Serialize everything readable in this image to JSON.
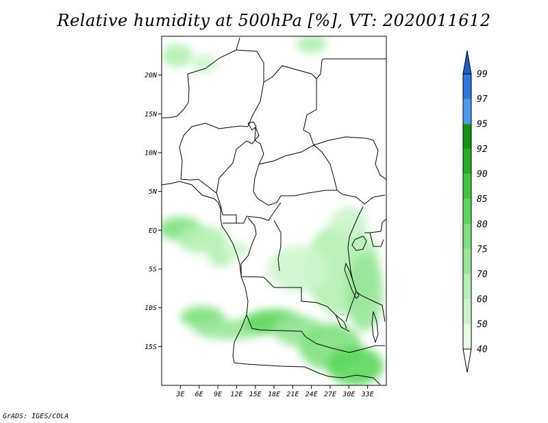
{
  "title": "Relative humidity at 500hPa [%], VT: 2020011612",
  "credit": "GrADS: IGES/COLA",
  "map": {
    "lon_range": [
      0,
      36
    ],
    "lat_range": [
      -20,
      25
    ],
    "lat_ticks": [
      {
        "value": 20,
        "label": "20N"
      },
      {
        "value": 15,
        "label": "15N"
      },
      {
        "value": 10,
        "label": "10N"
      },
      {
        "value": 5,
        "label": "5N"
      },
      {
        "value": 0,
        "label": "EQ"
      },
      {
        "value": -5,
        "label": "5S"
      },
      {
        "value": -10,
        "label": "10S"
      },
      {
        "value": -15,
        "label": "15S"
      }
    ],
    "lon_ticks": [
      {
        "value": 3,
        "label": "3E"
      },
      {
        "value": 6,
        "label": "6E"
      },
      {
        "value": 9,
        "label": "9E"
      },
      {
        "value": 12,
        "label": "12E"
      },
      {
        "value": 15,
        "label": "15E"
      },
      {
        "value": 18,
        "label": "18E"
      },
      {
        "value": 21,
        "label": "21E"
      },
      {
        "value": 24,
        "label": "24E"
      },
      {
        "value": 27,
        "label": "27E"
      },
      {
        "value": 30,
        "label": "30E"
      },
      {
        "value": 33,
        "label": "33E"
      }
    ],
    "humidity_patches": [
      {
        "lon": 2.5,
        "lat": 22.5,
        "rx": 2.5,
        "ry": 1.5,
        "level": 60
      },
      {
        "lon": 7,
        "lat": 21.5,
        "rx": 2,
        "ry": 1.2,
        "level": 50
      },
      {
        "lon": 24,
        "lat": 24,
        "rx": 2.5,
        "ry": 1.2,
        "level": 60
      },
      {
        "lon": 3,
        "lat": 0.2,
        "rx": 3.5,
        "ry": 1.5,
        "level": 75
      },
      {
        "lon": 6.5,
        "lat": -1.2,
        "rx": 4,
        "ry": 1.8,
        "level": 60
      },
      {
        "lon": 9.5,
        "lat": -3.5,
        "rx": 2,
        "ry": 1.2,
        "level": 60
      },
      {
        "lon": 12,
        "lat": -2.5,
        "rx": 2,
        "ry": 1,
        "level": 50
      },
      {
        "lon": 6.5,
        "lat": -11.2,
        "rx": 3.5,
        "ry": 1.4,
        "level": 75
      },
      {
        "lon": 11,
        "lat": -12.8,
        "rx": 6,
        "ry": 1.3,
        "level": 70
      },
      {
        "lon": 18,
        "lat": -11.8,
        "rx": 5,
        "ry": 1.6,
        "level": 80
      },
      {
        "lon": 22,
        "lat": -13,
        "rx": 4,
        "ry": 2,
        "level": 70
      },
      {
        "lon": 27,
        "lat": -15,
        "rx": 5,
        "ry": 3,
        "level": 75
      },
      {
        "lon": 31,
        "lat": -17.5,
        "rx": 4.5,
        "ry": 2.5,
        "level": 80
      },
      {
        "lon": 29,
        "lat": -5,
        "rx": 6,
        "ry": 6,
        "level": 60
      },
      {
        "lon": 32.5,
        "lat": -8,
        "rx": 3,
        "ry": 5,
        "level": 70
      },
      {
        "lon": 30,
        "lat": 1,
        "rx": 3,
        "ry": 2,
        "level": 50
      },
      {
        "lon": 22,
        "lat": -5,
        "rx": 5,
        "ry": 3,
        "level": 50
      }
    ]
  },
  "colorbar": {
    "levels": [
      {
        "label": "40",
        "color": "#e6ffe6"
      },
      {
        "label": "50",
        "color": "#ccf5cc"
      },
      {
        "label": "60",
        "color": "#b3f0b3"
      },
      {
        "label": "70",
        "color": "#99e699"
      },
      {
        "label": "75",
        "color": "#80e080"
      },
      {
        "label": "80",
        "color": "#5cd65c"
      },
      {
        "label": "85",
        "color": "#3dc63d"
      },
      {
        "label": "90",
        "color": "#22b022"
      },
      {
        "label": "92",
        "color": "#129412"
      },
      {
        "label": "95",
        "color": "#4a9be8"
      },
      {
        "label": "97",
        "color": "#2a7ae0"
      },
      {
        "label": "99",
        "color": "#1a5ec8"
      }
    ],
    "top_color": "#1a5ec8",
    "bottom_color": "#ffffff"
  }
}
